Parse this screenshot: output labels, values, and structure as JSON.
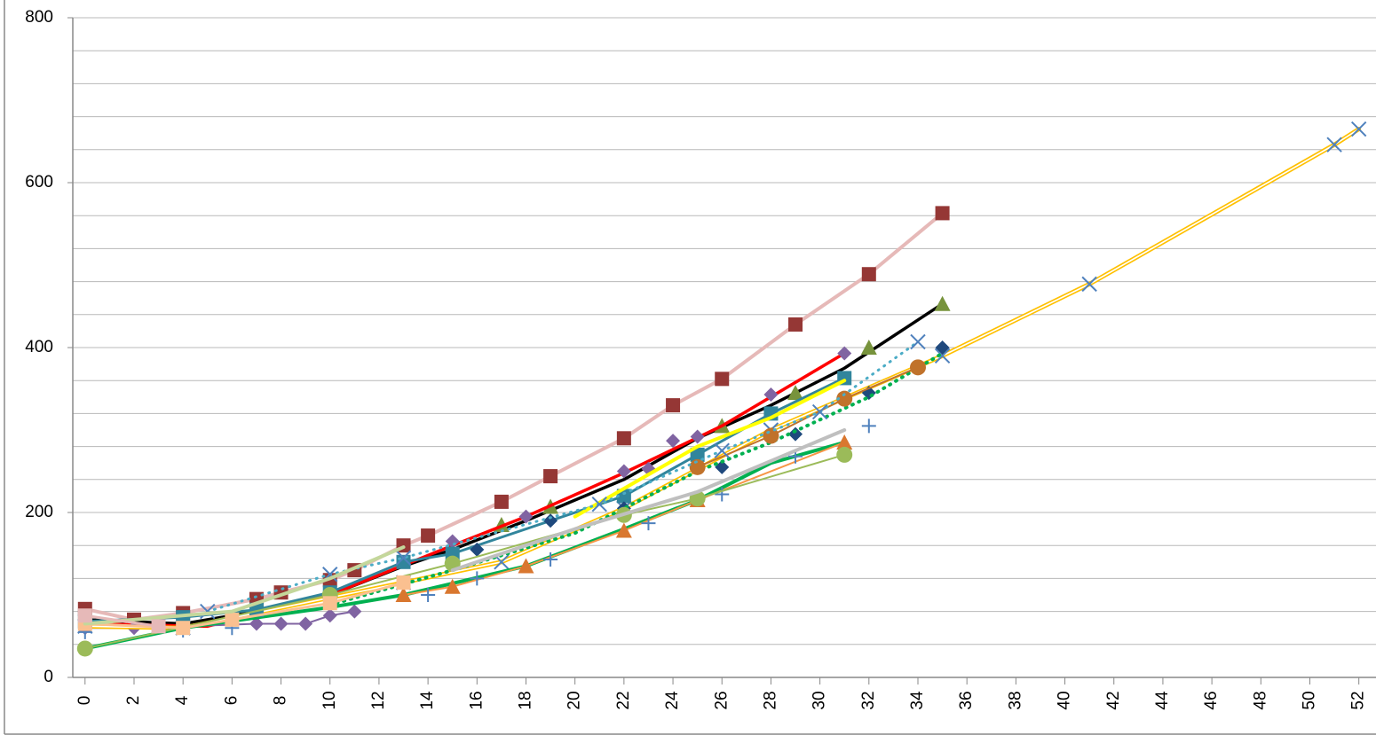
{
  "chart_data": {
    "type": "line",
    "xlim": [
      -0.5,
      52.7
    ],
    "ylim": [
      0,
      800
    ],
    "xticks": [
      0,
      2,
      4,
      6,
      8,
      10,
      12,
      14,
      16,
      18,
      20,
      22,
      24,
      26,
      28,
      30,
      32,
      34,
      36,
      38,
      40,
      42,
      44,
      46,
      48,
      50,
      52
    ],
    "yticks": [
      0,
      200,
      400,
      600,
      800
    ],
    "y_gridlines": [
      40,
      80,
      120,
      160,
      200,
      240,
      280,
      320,
      360,
      400,
      440,
      480,
      520,
      560,
      600,
      640,
      680,
      720,
      760,
      800
    ],
    "grid": true,
    "series": [
      {
        "color": "#e6b9b8",
        "marker": "square",
        "marker_color": "#953735",
        "line": "solid",
        "width": 4,
        "x": [
          0,
          2,
          4,
          7,
          8,
          10,
          11,
          13,
          14,
          17,
          19,
          22,
          24,
          26,
          29,
          32,
          35
        ],
        "values": [
          83,
          70,
          78,
          95,
          103,
          118,
          130,
          160,
          172,
          213,
          244,
          290,
          330,
          362,
          428,
          489,
          563
        ]
      },
      {
        "color": "#000000",
        "marker": "none",
        "line": "solid",
        "width": 3.5,
        "x": [
          0,
          4,
          7,
          10,
          13,
          15,
          18,
          22,
          25,
          28,
          31,
          35
        ],
        "values": [
          70,
          65,
          80,
          100,
          135,
          155,
          190,
          240,
          290,
          330,
          375,
          453
        ]
      },
      {
        "color": "#77933c",
        "marker": "triangle",
        "marker_color": "#77933c",
        "line": "none",
        "width": 0,
        "x": [
          17,
          19,
          26,
          29,
          32,
          35
        ],
        "values": [
          185,
          207,
          305,
          345,
          400,
          453
        ]
      },
      {
        "color": "#ff0000",
        "marker": "none",
        "line": "solid",
        "width": 3.5,
        "x": [
          0,
          5,
          10,
          15,
          18,
          22,
          26,
          31
        ],
        "values": [
          65,
          62,
          100,
          160,
          195,
          248,
          305,
          393
        ]
      },
      {
        "color": "#8064a2",
        "marker": "diamond",
        "marker_color": "#8064a2",
        "line": "solid",
        "width": 2,
        "x": [
          0,
          2,
          4,
          7,
          8,
          9,
          10,
          11
        ],
        "values": [
          60,
          60,
          62,
          65,
          65,
          65,
          75,
          80
        ]
      },
      {
        "color": "#8064a2",
        "marker": "diamond",
        "marker_color": "#8064a2",
        "line": "none",
        "width": 0,
        "x": [
          15,
          18,
          22,
          23,
          24,
          25,
          28,
          31
        ],
        "values": [
          165,
          195,
          250,
          253,
          287,
          292,
          343,
          393
        ]
      },
      {
        "color": "#ffc000",
        "marker": "x",
        "marker_color": "#4f81bd",
        "line": "double",
        "width": 5,
        "x": [
          0,
          4,
          13,
          17,
          22,
          28,
          35,
          41,
          51,
          52
        ],
        "values": [
          62,
          60,
          115,
          140,
          205,
          300,
          390,
          477,
          646,
          665
        ]
      },
      {
        "color": "#00b050",
        "marker": "none",
        "line": "solid",
        "width": 4,
        "x": [
          0,
          4,
          10,
          13,
          18,
          22,
          25,
          28,
          31
        ],
        "values": [
          35,
          60,
          85,
          100,
          135,
          180,
          215,
          260,
          285
        ]
      },
      {
        "color": "#f79646",
        "marker": "triangle",
        "marker_color": "#d9772f",
        "line": "solid",
        "width": 2,
        "x": [
          13,
          15,
          18,
          22,
          25,
          31
        ],
        "values": [
          100,
          110,
          135,
          178,
          215,
          285
        ]
      },
      {
        "color": "#4f81bd",
        "marker": "plus",
        "marker_color": "#4f81bd",
        "line": "none",
        "width": 0,
        "x": [
          0,
          4,
          6,
          14,
          16,
          19,
          23,
          26,
          29,
          32
        ],
        "values": [
          55,
          57,
          60,
          100,
          120,
          143,
          187,
          222,
          268,
          305
        ]
      },
      {
        "color": "#31859c",
        "marker": "square",
        "marker_color": "#31859c",
        "line": "solid",
        "width": 3,
        "x": [
          0,
          4,
          7,
          10,
          13,
          15,
          22,
          25,
          28,
          31
        ],
        "values": [
          68,
          73,
          82,
          103,
          140,
          150,
          220,
          270,
          320,
          363
        ]
      },
      {
        "color": "#1f497d",
        "marker": "diamond",
        "marker_color": "#1f497d",
        "line": "none",
        "width": 0,
        "x": [
          16,
          19,
          22,
          26,
          29,
          32,
          35
        ],
        "values": [
          155,
          190,
          205,
          255,
          295,
          345,
          400
        ]
      },
      {
        "color": "#00b050",
        "marker": "none",
        "line": "dotted",
        "width": 4,
        "x": [
          10,
          15,
          20,
          25,
          28,
          32,
          35
        ],
        "values": [
          88,
          130,
          175,
          250,
          285,
          340,
          393
        ]
      },
      {
        "color": "#9bbb59",
        "marker": "circle",
        "marker_color": "#9bbb59",
        "line": "solid",
        "width": 2,
        "x": [
          0,
          10,
          15,
          22,
          25,
          31
        ],
        "values": [
          35,
          100,
          138,
          197,
          217,
          270
        ]
      },
      {
        "color": "#c0722b",
        "marker": "circle",
        "marker_color": "#c0722b",
        "line": "solid",
        "width": 2,
        "x": [
          25,
          28,
          31,
          34
        ],
        "values": [
          255,
          293,
          338,
          376
        ]
      },
      {
        "color": "#ffff00",
        "marker": "none",
        "line": "solid",
        "width": 4,
        "x": [
          20,
          25,
          28,
          31
        ],
        "values": [
          195,
          280,
          315,
          360
        ]
      },
      {
        "color": "#bfbfbf",
        "marker": "none",
        "line": "solid",
        "width": 4,
        "x": [
          15,
          20,
          25,
          31
        ],
        "values": [
          130,
          180,
          225,
          300
        ]
      },
      {
        "color": "#4bacc6",
        "marker": "x",
        "marker_color": "#4f81bd",
        "line": "dotted",
        "width": 3,
        "x": [
          5,
          10,
          13,
          21,
          26,
          30,
          34
        ],
        "values": [
          80,
          125,
          145,
          210,
          275,
          322,
          407
        ]
      },
      {
        "color": "#fac090",
        "marker": "square",
        "marker_color": "#fac090",
        "line": "solid",
        "width": 3,
        "x": [
          0,
          4,
          6,
          10,
          13
        ],
        "values": [
          65,
          60,
          70,
          90,
          115
        ]
      },
      {
        "color": "#c4d79b",
        "marker": "none",
        "line": "solid",
        "width": 4,
        "x": [
          0,
          6,
          10,
          13
        ],
        "values": [
          65,
          80,
          120,
          158
        ]
      },
      {
        "color": "#e6b9b8",
        "marker": "square",
        "marker_color": "#e6b9b8",
        "line": "solid",
        "width": 3,
        "x": [
          0,
          3
        ],
        "values": [
          75,
          62
        ]
      }
    ]
  }
}
